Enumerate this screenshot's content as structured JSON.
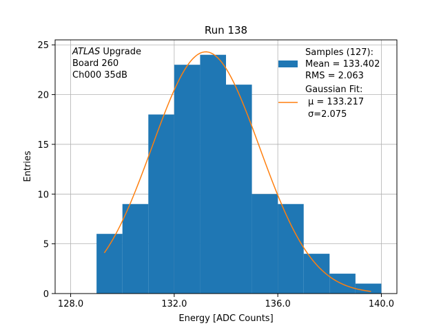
{
  "chart_data": {
    "type": "bar",
    "title": "Run 138",
    "xlabel": "Energy [ADC Counts]",
    "ylabel": "Entries",
    "xlim": [
      127.4,
      140.6
    ],
    "ylim": [
      0,
      25.5
    ],
    "xticks": [
      128.0,
      132.0,
      136.0,
      140.0
    ],
    "xtick_labels": [
      "128.0",
      "132.0",
      "136.0",
      "140.0"
    ],
    "yticks": [
      0,
      5,
      10,
      15,
      20,
      25
    ],
    "ytick_labels": [
      "0",
      "5",
      "10",
      "15",
      "20",
      "25"
    ],
    "grid": true,
    "legend_position": "top-right",
    "colors": {
      "histogram": "#1f77b4",
      "fit": "#ff7f0e"
    },
    "histogram": {
      "bin_edges": [
        129,
        130,
        131,
        132,
        133,
        134,
        135,
        136,
        137,
        138,
        139,
        140
      ],
      "counts": [
        6,
        9,
        18,
        23,
        24,
        21,
        10,
        9,
        4,
        2,
        1
      ]
    },
    "gaussian_fit": {
      "mu": 133.217,
      "sigma": 2.075,
      "amplitude": 24.3,
      "x_range": [
        129.3,
        139.6
      ]
    },
    "annotation": {
      "line1_italic": "ATLAS",
      "line1_rest": " Upgrade",
      "line2": " Board 260",
      "line3": " Ch000 35dB"
    },
    "legend": {
      "samples_title": "Samples (127):",
      "samples_mean": " Mean = 133.402",
      "samples_rms": " RMS = 2.063",
      "fit_title": "Gaussian Fit:",
      "fit_mu": "μ = 133.217",
      "fit_sigma": "σ=2.075"
    }
  }
}
